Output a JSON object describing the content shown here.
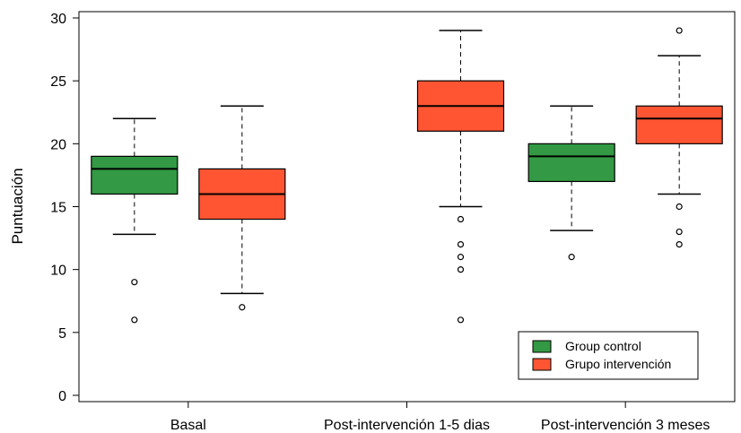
{
  "chart_data": {
    "type": "boxplot",
    "ylabel": "Puntuación",
    "xlabel": "",
    "ylim": [
      -0.5,
      30.5
    ],
    "yticks": [
      0,
      5,
      10,
      15,
      20,
      25,
      30
    ],
    "grid": false,
    "legend_position": "bottom-right",
    "categories": [
      "Basal",
      "Post-intervención 1-5 dias",
      "Post-intervención 3 meses"
    ],
    "series": [
      {
        "name": "Group control",
        "color": "#339944",
        "boxes": [
          {
            "whisker_low": 12.8,
            "q1": 16,
            "median": 18,
            "q3": 19,
            "whisker_high": 22,
            "outliers": [
              9,
              6
            ]
          },
          null,
          {
            "whisker_low": 13.1,
            "q1": 17,
            "median": 19,
            "q3": 20,
            "whisker_high": 23,
            "outliers": [
              11
            ]
          }
        ]
      },
      {
        "name": "Grupo intervención",
        "color": "#ff5533",
        "boxes": [
          {
            "whisker_low": 8.1,
            "q1": 14,
            "median": 16,
            "q3": 18,
            "whisker_high": 23,
            "outliers": [
              7
            ]
          },
          {
            "whisker_low": 15,
            "q1": 21,
            "median": 23,
            "q3": 25,
            "whisker_high": 29,
            "outliers": [
              14,
              12,
              11,
              10,
              6
            ]
          },
          {
            "whisker_low": 16,
            "q1": 20,
            "median": 22,
            "q3": 23,
            "whisker_high": 27,
            "outliers": [
              29,
              15,
              13,
              12
            ]
          }
        ]
      }
    ]
  }
}
